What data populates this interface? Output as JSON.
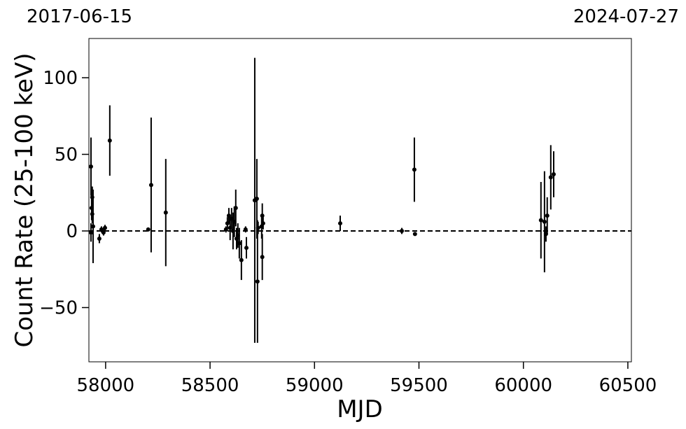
{
  "chart_data": {
    "type": "scatter",
    "annotations": [
      "2017-06-15",
      "2024-07-27"
    ],
    "xlabel": "MJD",
    "ylabel": "Count Rate (25-100 keV)",
    "x": [
      57930,
      57933,
      57936,
      57936,
      57940,
      57930,
      57970,
      57980,
      57990,
      57997,
      58020,
      58204,
      58218,
      58288,
      58576,
      58583,
      58590,
      58596,
      58603,
      58610,
      58616,
      58623,
      58627,
      58633,
      58640,
      58650,
      58670,
      58674,
      58714,
      58724,
      58727,
      58730,
      58747,
      58750,
      58750,
      58754,
      59123,
      59418,
      59478,
      59481,
      60084,
      60101,
      60108,
      60114,
      60131,
      60145
    ],
    "series": [
      {
        "color": "#000000",
        "values": [
          42,
          15,
          22,
          11,
          3,
          -1,
          -5,
          1,
          -1,
          2,
          59,
          1,
          30,
          12,
          1,
          5,
          10,
          2,
          8,
          0,
          6,
          15,
          -5,
          -3,
          -8,
          -19,
          1,
          -11,
          20,
          21,
          -33,
          2,
          3,
          -17,
          10,
          5,
          5,
          0,
          40,
          -2,
          7,
          6,
          -2,
          10,
          35,
          37
        ],
        "errors": [
          19,
          8,
          7,
          6,
          24,
          6,
          3,
          2,
          2,
          2,
          23,
          1,
          44,
          35,
          2,
          4,
          5,
          8,
          7,
          12,
          10,
          12,
          7,
          8,
          10,
          13,
          2,
          7,
          93,
          26,
          40,
          4,
          8,
          15,
          8,
          4,
          5,
          2,
          21,
          1,
          25,
          33,
          5,
          12,
          21,
          15
        ]
      }
    ],
    "hline": 0,
    "xlim": [
      57920,
      60517
    ],
    "ylim": [
      -85.4,
      125.6
    ],
    "xticks": [
      58000,
      58500,
      59000,
      59500,
      60000,
      60500
    ],
    "yticks": [
      {
        "value": -50,
        "label": "−50"
      },
      0,
      50,
      100
    ]
  }
}
